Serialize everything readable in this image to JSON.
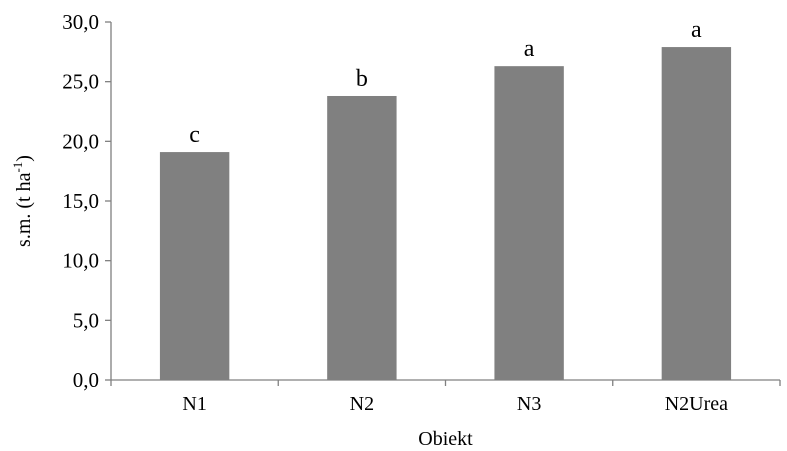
{
  "chart_data": {
    "type": "bar",
    "title": "",
    "xlabel": "Obiekt",
    "ylabel": {
      "main": "s.m. (t ha",
      "superscript": "-1",
      "close": ")"
    },
    "categories": [
      "N1",
      "N2",
      "N3",
      "N2Urea"
    ],
    "values": [
      19.1,
      23.8,
      26.3,
      27.9
    ],
    "bar_labels": [
      "c",
      "b",
      "a",
      "a"
    ],
    "ylim": [
      0,
      30
    ],
    "yticks": [
      "0,0",
      "5,0",
      "10,0",
      "15,0",
      "20,0",
      "25,0",
      "30,0"
    ],
    "grid": false,
    "legend": "none",
    "bar_color": "#808080"
  }
}
